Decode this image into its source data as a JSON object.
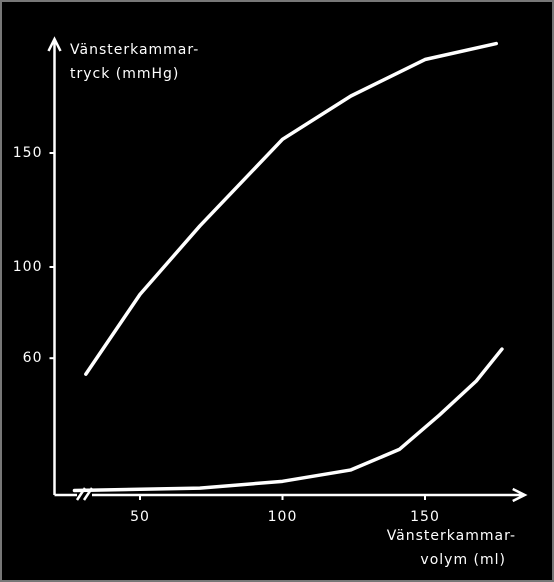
{
  "chart_data": {
    "type": "line",
    "ylabel": [
      "Vänsterkammar-",
      "tryck (mmHg)"
    ],
    "xlabel": [
      "Vänsterkammar-",
      "volym (ml)"
    ],
    "xlim": [
      20,
      185
    ],
    "xticks": [
      50,
      100,
      150
    ],
    "ylim": [
      0,
      200
    ],
    "yticks": [
      60,
      100,
      150
    ],
    "series": [
      {
        "color": "#ffffff",
        "x": [
          31,
          50,
          71,
          100,
          124,
          150,
          175
        ],
        "values": [
          53,
          88,
          118,
          156,
          175,
          191,
          198
        ]
      },
      {
        "color": "#ffffff",
        "x": [
          27,
          71,
          100,
          124,
          141,
          155,
          168,
          177
        ],
        "values": [
          2,
          3,
          6,
          11,
          20,
          35,
          50,
          64
        ]
      }
    ]
  }
}
